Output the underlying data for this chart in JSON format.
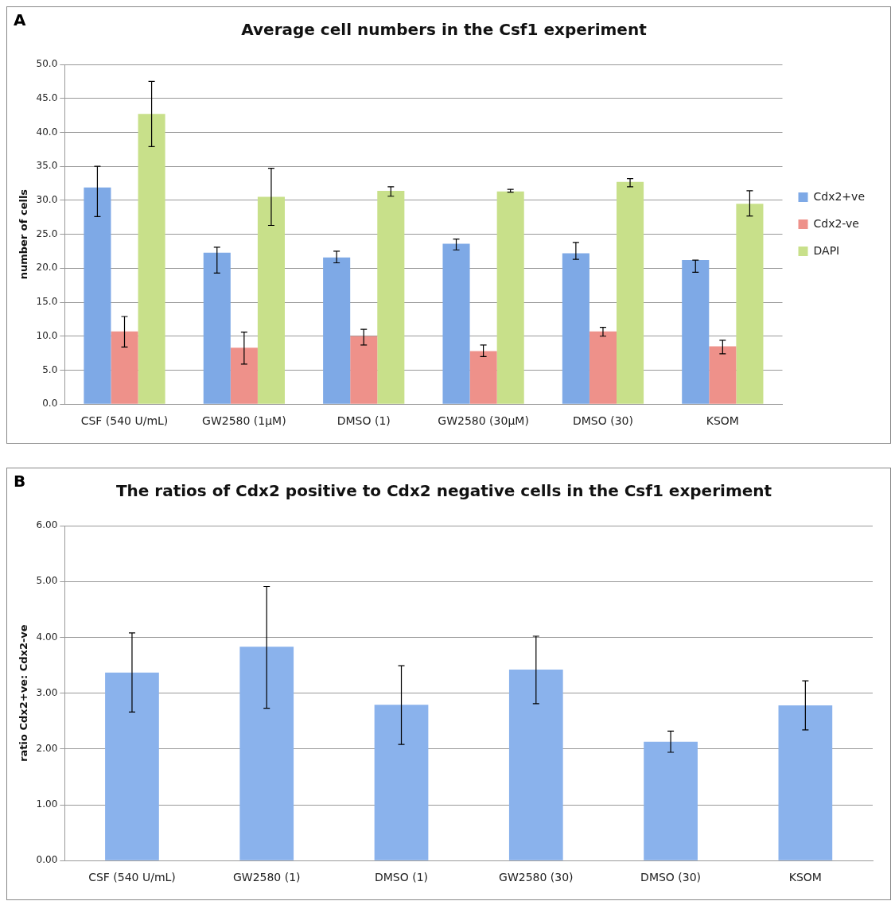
{
  "chart_data": [
    {
      "type": "bar",
      "title": "Average cell numbers in the Csf1 experiment",
      "ylabel": "number of cells",
      "annotations": [
        "A"
      ],
      "categories": [
        "CSF (540 U/mL)",
        "GW2580 (1µM)",
        "DMSO (1)",
        "GW2580 (30µM)",
        "DMSO (30)",
        "KSOM"
      ],
      "series": [
        {
          "name": "Cdx2+ve",
          "color": "#7ea9e6",
          "values": [
            31.9,
            22.3,
            21.6,
            23.6,
            22.2,
            21.2
          ],
          "errors": [
            [
              27.6,
              35.0
            ],
            [
              19.3,
              23.1
            ],
            [
              20.8,
              22.5
            ],
            [
              22.7,
              24.3
            ],
            [
              21.3,
              23.8
            ],
            [
              19.4,
              21.2
            ]
          ]
        },
        {
          "name": "Cdx2-ve",
          "color": "#ee918a",
          "values": [
            10.7,
            8.3,
            10.0,
            7.8,
            10.7,
            8.5
          ],
          "errors": [
            [
              8.4,
              12.9
            ],
            [
              5.9,
              10.6
            ],
            [
              8.7,
              11.0
            ],
            [
              7.0,
              8.7
            ],
            [
              10.0,
              11.3
            ],
            [
              7.4,
              9.4
            ]
          ]
        },
        {
          "name": "DAPI",
          "color": "#c8e08a",
          "values": [
            42.7,
            30.5,
            31.4,
            31.3,
            32.7,
            29.5
          ],
          "errors": [
            [
              37.9,
              47.5
            ],
            [
              26.3,
              34.7
            ],
            [
              30.6,
              32.0
            ],
            [
              31.2,
              31.6
            ],
            [
              32.0,
              33.2
            ],
            [
              27.7,
              31.4
            ]
          ]
        }
      ],
      "ylim": [
        0,
        50
      ],
      "yticks": [
        {
          "value": 0,
          "label": "0.0"
        },
        {
          "value": 5,
          "label": "5.0"
        },
        {
          "value": 10,
          "label": "10.0"
        },
        {
          "value": 15,
          "label": "15.0"
        },
        {
          "value": 20,
          "label": "20.0"
        },
        {
          "value": 25,
          "label": "25.0"
        },
        {
          "value": 30,
          "label": "30.0"
        },
        {
          "value": 35,
          "label": "35.0"
        },
        {
          "value": 40,
          "label": "40.0"
        },
        {
          "value": 45,
          "label": "45.0"
        },
        {
          "value": 50,
          "label": "50.0"
        }
      ],
      "grid": "y",
      "legend": "right"
    },
    {
      "type": "bar",
      "title": "The ratios of Cdx2 positive to Cdx2 negative cells in the Csf1 experiment",
      "ylabel": "ratio Cdx2+ve: Cdx2-ve",
      "annotations": [
        "B"
      ],
      "categories": [
        "CSF (540 U/mL)",
        "GW2580 (1)",
        "DMSO (1)",
        "GW2580 (30)",
        "DMSO (30)",
        "KSOM"
      ],
      "color": "#8ab2ec",
      "values": [
        3.37,
        3.83,
        2.79,
        3.42,
        2.13,
        2.78
      ],
      "errors": [
        [
          2.66,
          4.08
        ],
        [
          2.73,
          4.91
        ],
        [
          2.08,
          3.49
        ],
        [
          2.81,
          4.02
        ],
        [
          1.94,
          2.32
        ],
        [
          2.34,
          3.22
        ]
      ],
      "ylim": [
        0,
        6
      ],
      "yticks": [
        {
          "value": 0,
          "label": "0.00"
        },
        {
          "value": 1,
          "label": "1.00"
        },
        {
          "value": 2,
          "label": "2.00"
        },
        {
          "value": 3,
          "label": "3.00"
        },
        {
          "value": 4,
          "label": "4.00"
        },
        {
          "value": 5,
          "label": "5.00"
        },
        {
          "value": 6,
          "label": "6.00"
        }
      ],
      "grid": "y"
    }
  ]
}
